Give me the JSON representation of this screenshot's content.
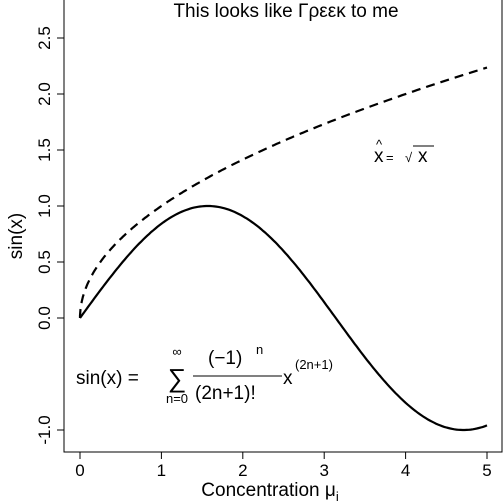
{
  "chart_data": {
    "type": "line",
    "title": "This looks like Γρεεκ to me",
    "xlabel": "Concentration μ",
    "xlabel_subscript": "i",
    "ylabel": "sin(x)",
    "xlim": [
      0,
      5
    ],
    "ylim": [
      -1.1,
      2.6
    ],
    "xticks": [
      "0",
      "1",
      "2",
      "3",
      "4",
      "5"
    ],
    "xtick_values": [
      0,
      1,
      2,
      3,
      4,
      5
    ],
    "yticks": [
      "-1.0",
      "0.0",
      "0.5",
      "1.0",
      "1.5",
      "2.0",
      "2.5"
    ],
    "ytick_values": [
      -1.0,
      0.0,
      0.5,
      1.0,
      1.5,
      2.0,
      2.5
    ],
    "grid": false,
    "box": "left-bottom-right",
    "series": [
      {
        "style": "solid",
        "x": [
          0,
          0.25,
          0.5,
          0.75,
          1.0,
          1.25,
          1.5,
          1.75,
          2.0,
          2.25,
          2.5,
          2.75,
          3.0,
          3.25,
          3.5,
          3.75,
          4.0,
          4.25,
          4.5,
          4.75,
          5.0
        ],
        "y": [
          0,
          0.247,
          0.479,
          0.682,
          0.841,
          0.949,
          0.997,
          0.984,
          0.909,
          0.778,
          0.598,
          0.382,
          0.141,
          -0.108,
          -0.351,
          -0.572,
          -0.757,
          -0.895,
          -0.978,
          -0.999,
          -0.959
        ]
      },
      {
        "style": "dashed",
        "x": [
          0,
          0.05,
          0.1,
          0.2,
          0.3,
          0.5,
          0.75,
          1.0,
          1.25,
          1.5,
          1.75,
          2.0,
          2.25,
          2.5,
          2.75,
          3.0,
          3.25,
          3.5,
          3.75,
          4.0,
          4.25,
          4.5,
          4.75,
          5.0
        ],
        "y": [
          0,
          0.224,
          0.316,
          0.447,
          0.548,
          0.707,
          0.866,
          1.0,
          1.118,
          1.225,
          1.323,
          1.414,
          1.5,
          1.581,
          1.658,
          1.732,
          1.803,
          1.871,
          1.936,
          2.0,
          2.062,
          2.121,
          2.179,
          2.236
        ]
      }
    ],
    "annotations": {
      "hat_formula": {
        "lhs": "x",
        "hat": "^",
        "eq": " = ",
        "radical": "√",
        "rad_arg": "x",
        "at": [
          3.8,
          1.45
        ]
      },
      "sum_formula": {
        "lhs": "sin(x) = ",
        "sigma": "∑",
        "upper": "∞",
        "lower": "n=0",
        "numerator": "(−1)",
        "num_exp": "n",
        "denominator": "(2n+1)!",
        "tail": "x",
        "tail_exp": "(2n+1)",
        "at": [
          0.0,
          -0.5
        ]
      }
    }
  }
}
